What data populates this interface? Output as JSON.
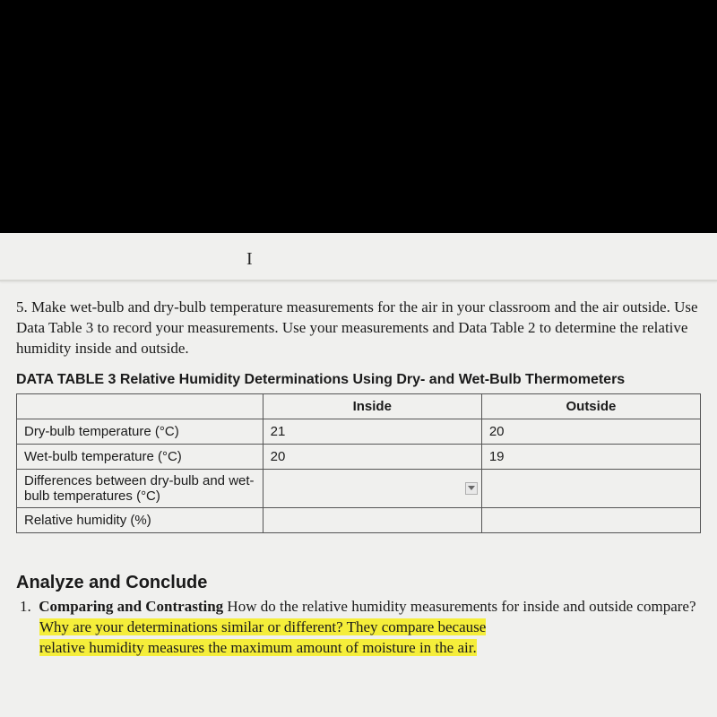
{
  "cursor_glyph": "I",
  "question": {
    "number": "5.",
    "text": "Make wet-bulb and dry-bulb temperature measurements for the air in your classroom and the air outside. Use Data Table 3 to record your measurements. Use your measurements and Data Table 2 to determine the relative humidity inside and outside."
  },
  "table": {
    "title": "DATA TABLE 3 Relative Humidity Determinations Using Dry- and Wet-Bulb Thermometers",
    "headers": {
      "blank": "",
      "inside": "Inside",
      "outside": "Outside"
    },
    "rows": [
      {
        "label": "Dry-bulb temperature (°C)",
        "inside": "21",
        "outside": "20",
        "dropdown": false
      },
      {
        "label": "Wet-bulb temperature (°C)",
        "inside": "20",
        "outside": "19",
        "dropdown": false
      },
      {
        "label": "Differences between dry-bulb and wet-bulb temperatures (°C)",
        "inside": "",
        "outside": "",
        "dropdown": true
      },
      {
        "label": "Relative humidity (%)",
        "inside": "",
        "outside": "",
        "dropdown": false
      }
    ]
  },
  "analyze": {
    "heading": "Analyze and Conclude",
    "item_number": "1.",
    "item_bold": "Comparing and Contrasting",
    "item_plain": " How do the relative humidity measurements for inside and outside compare? ",
    "item_highlight1": "Why are your determinations similar or different? They compare because",
    "item_highlight2": "relative humidity measures the maximum amount of moisture in the air."
  },
  "colors": {
    "page_bg": "#f0f0ee",
    "black_bg": "#000000",
    "border": "#555555",
    "highlight": "#f5ee3a",
    "text": "#1a1a1a"
  }
}
